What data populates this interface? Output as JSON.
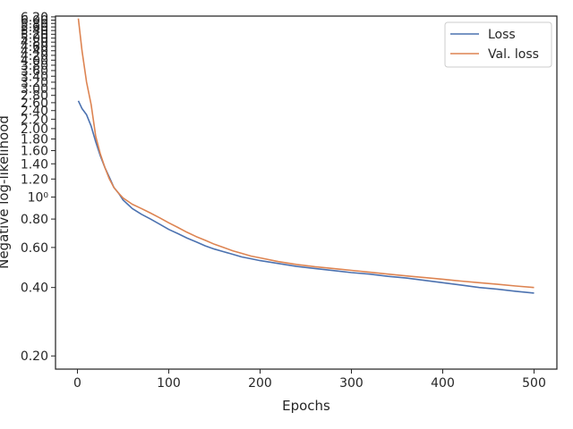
{
  "chart_data": {
    "type": "line",
    "xlabel": "Epochs",
    "ylabel": "Negative log-likelihood",
    "xlim": [
      -24,
      525
    ],
    "ylim": [
      0.175,
      6.25
    ],
    "yscale": "log",
    "xticks": [
      0,
      100,
      200,
      300,
      400,
      500
    ],
    "xtick_labels": [
      "0",
      "100",
      "200",
      "300",
      "400",
      "500"
    ],
    "yticks": [
      0.2,
      0.4,
      0.6,
      0.8,
      1.0,
      1.2,
      1.4,
      1.6,
      1.8,
      2.0,
      2.2,
      2.4,
      2.6,
      2.8,
      3.0,
      3.2,
      3.4,
      3.6,
      3.8,
      4.0,
      4.2,
      4.4,
      4.6,
      4.8,
      5.0,
      5.2,
      5.4,
      5.6,
      5.8,
      6.0,
      6.2
    ],
    "ytick_labels": [
      "0.20",
      "0.40",
      "0.60",
      "0.80",
      "10⁰",
      "1.20",
      "1.40",
      "1.60",
      "1.80",
      "2.00",
      "2.20",
      "2.40",
      "2.60",
      "2.80",
      "3.00",
      "3.20",
      "3.40",
      "3.60",
      "3.80",
      "4.00",
      "4.20",
      "4.40",
      "4.60",
      "4.80",
      "5.00",
      "5.20",
      "5.40",
      "5.60",
      "5.80",
      "6.00",
      "6.20"
    ],
    "grid": false,
    "legend_loc": "upper right",
    "series": [
      {
        "name": "Loss",
        "color": "#4c72b0",
        "x": [
          1,
          5,
          10,
          15,
          20,
          25,
          30,
          35,
          40,
          45,
          50,
          55,
          60,
          70,
          80,
          90,
          100,
          110,
          120,
          130,
          140,
          150,
          160,
          170,
          180,
          190,
          200,
          220,
          240,
          260,
          280,
          300,
          320,
          340,
          360,
          380,
          400,
          420,
          440,
          460,
          480,
          500
        ],
        "y": [
          2.65,
          2.45,
          2.3,
          2.05,
          1.75,
          1.52,
          1.35,
          1.22,
          1.1,
          1.04,
          0.97,
          0.93,
          0.89,
          0.84,
          0.8,
          0.76,
          0.72,
          0.69,
          0.66,
          0.635,
          0.61,
          0.59,
          0.575,
          0.56,
          0.545,
          0.535,
          0.525,
          0.51,
          0.495,
          0.485,
          0.475,
          0.465,
          0.458,
          0.448,
          0.44,
          0.43,
          0.42,
          0.41,
          0.4,
          0.393,
          0.385,
          0.378
        ]
      },
      {
        "name": "Val. loss",
        "color": "#dd8452",
        "x": [
          1,
          5,
          10,
          15,
          20,
          25,
          30,
          35,
          40,
          45,
          50,
          55,
          60,
          70,
          80,
          90,
          100,
          110,
          120,
          130,
          140,
          150,
          160,
          170,
          180,
          190,
          200,
          220,
          240,
          260,
          280,
          300,
          320,
          340,
          360,
          380,
          400,
          420,
          440,
          460,
          480,
          500
        ],
        "y": [
          6.1,
          4.4,
          3.2,
          2.55,
          1.85,
          1.55,
          1.35,
          1.2,
          1.1,
          1.04,
          0.99,
          0.96,
          0.93,
          0.89,
          0.85,
          0.81,
          0.77,
          0.735,
          0.7,
          0.67,
          0.645,
          0.62,
          0.6,
          0.58,
          0.565,
          0.55,
          0.54,
          0.52,
          0.505,
          0.494,
          0.485,
          0.476,
          0.467,
          0.458,
          0.45,
          0.442,
          0.435,
          0.427,
          0.42,
          0.413,
          0.406,
          0.4
        ]
      }
    ]
  }
}
